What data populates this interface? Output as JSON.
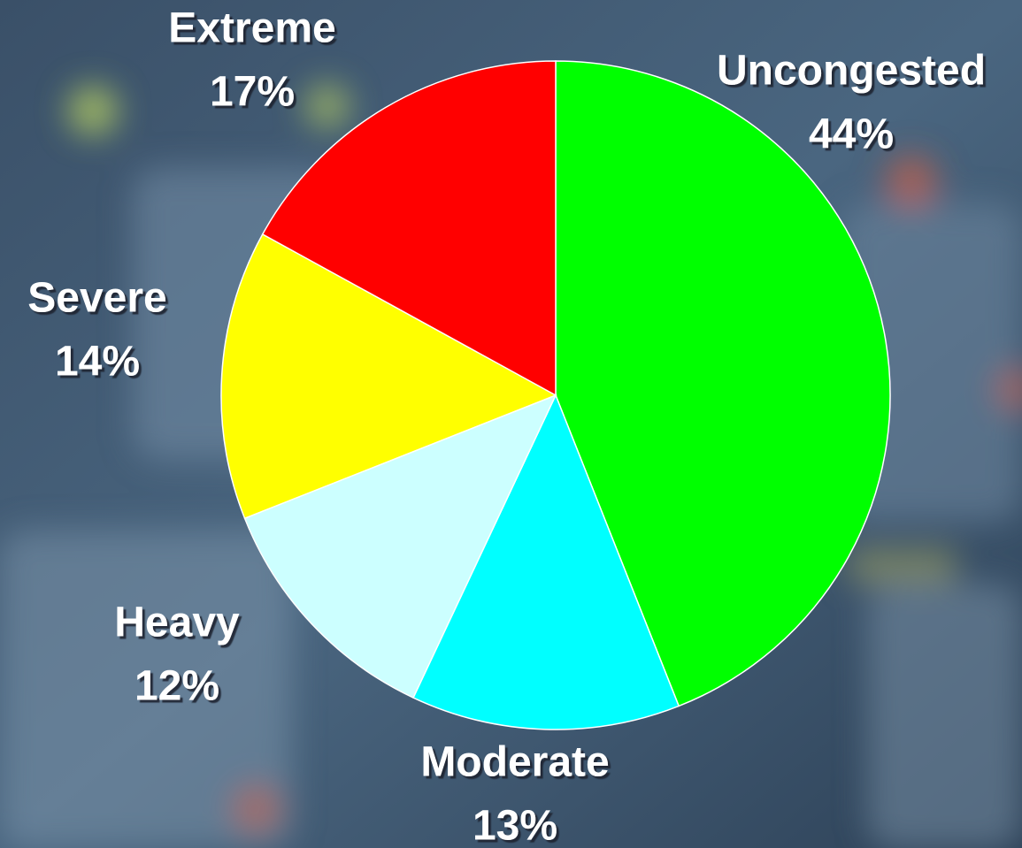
{
  "chart_data": {
    "type": "pie",
    "categories": [
      "Uncongested",
      "Moderate",
      "Heavy",
      "Severe",
      "Extreme"
    ],
    "values": [
      44,
      13,
      12,
      14,
      17
    ],
    "value_labels": [
      "44%",
      "13%",
      "12%",
      "14%",
      "17%"
    ],
    "colors": [
      "#00ff00",
      "#00ffff",
      "#ccffff",
      "#ffff00",
      "#ff0000"
    ]
  }
}
